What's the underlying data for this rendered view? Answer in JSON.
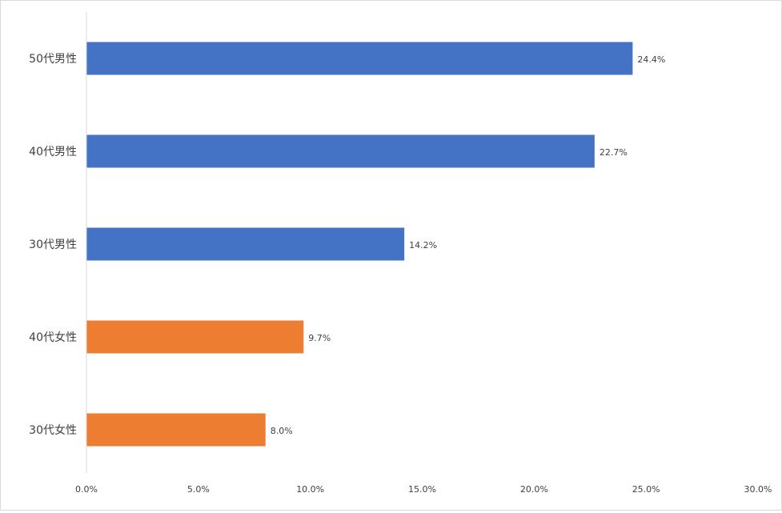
{
  "chart_data": {
    "type": "bar",
    "orientation": "horizontal",
    "categories": [
      "50代男性",
      "40代男性",
      "30代男性",
      "40代女性",
      "30代女性"
    ],
    "values": [
      24.4,
      22.7,
      14.2,
      9.7,
      8.0
    ],
    "data_labels": [
      "24.4%",
      "22.7%",
      "14.2%",
      "9.7%",
      "8.0%"
    ],
    "bar_colors": [
      "#4472C4",
      "#4472C4",
      "#4472C4",
      "#ED7D31",
      "#ED7D31"
    ],
    "xlim": [
      0,
      30
    ],
    "x_ticks": [
      0,
      5,
      10,
      15,
      20,
      25,
      30
    ],
    "x_tick_labels": [
      "0.0%",
      "5.0%",
      "10.0%",
      "15.0%",
      "20.0%",
      "25.0%",
      "30.0%"
    ],
    "grid": false,
    "legend": "none"
  }
}
